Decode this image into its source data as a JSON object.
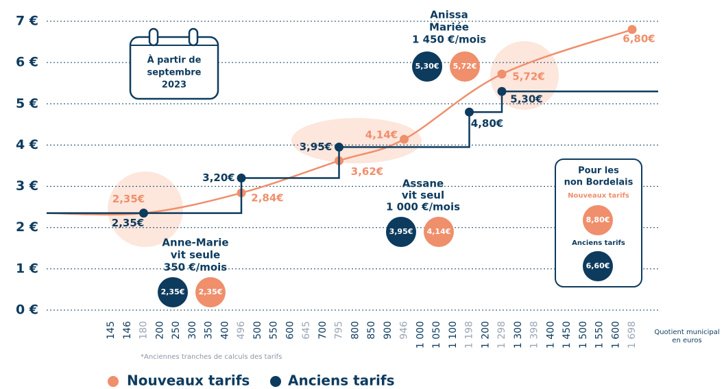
{
  "chart_data": {
    "type": "line",
    "categories": [
      "145",
      "146",
      "180",
      "200",
      "250",
      "300",
      "350",
      "400",
      "496",
      "500",
      "550",
      "600",
      "645",
      "700",
      "795",
      "800",
      "850",
      "900",
      "946",
      "1 000",
      "1 050",
      "1 100",
      "1 198",
      "1 200",
      "1 298",
      "1 300",
      "1 398",
      "1 400",
      "1 450",
      "1 500",
      "1 550",
      "1 600",
      "1 698"
    ],
    "category_colors": [
      "#0d3b5e",
      "#0d3b5e",
      "#9aa5b5",
      "#0d3b5e",
      "#0d3b5e",
      "#0d3b5e",
      "#0d3b5e",
      "#0d3b5e",
      "#9aa5b5",
      "#0d3b5e",
      "#0d3b5e",
      "#0d3b5e",
      "#9aa5b5",
      "#0d3b5e",
      "#9aa5b5",
      "#0d3b5e",
      "#0d3b5e",
      "#0d3b5e",
      "#9aa5b5",
      "#0d3b5e",
      "#0d3b5e",
      "#0d3b5e",
      "#9aa5b5",
      "#0d3b5e",
      "#9aa5b5",
      "#0d3b5e",
      "#9aa5b5",
      "#0d3b5e",
      "#0d3b5e",
      "#0d3b5e",
      "#0d3b5e",
      "#0d3b5e",
      "#9aa5b5"
    ],
    "ylim": [
      0,
      7
    ],
    "yticks": [
      {
        "value": 0,
        "label": "0 €"
      },
      {
        "value": 1,
        "label": "1 €"
      },
      {
        "value": 2,
        "label": "2 €"
      },
      {
        "value": 3,
        "label": "3 €"
      },
      {
        "value": 4,
        "label": "4 €"
      },
      {
        "value": 5,
        "label": "5 €"
      },
      {
        "value": 6,
        "label": "6 €"
      },
      {
        "value": 7,
        "label": "7 €"
      }
    ],
    "grid": true,
    "xlabel": [
      "Quotient municipal",
      "en euros"
    ],
    "footnote": "*Anciennes tranches de calculs des tarifs",
    "series": [
      {
        "name": "Nouveaux tarifs",
        "color": "#ef8f6c",
        "style": "smooth",
        "x": [
          "180",
          "496",
          "795",
          "946",
          "1 298",
          "1 698"
        ],
        "values": [
          2.35,
          2.84,
          3.62,
          4.14,
          5.72,
          6.8
        ],
        "value_labels": [
          "2,35€",
          "2,84€",
          "3,62€",
          "4,14€",
          "5,72€",
          "6,80€"
        ]
      },
      {
        "name": "Anciens tarifs",
        "color": "#0d3b5e",
        "style": "step",
        "x": [
          "180",
          "496",
          "795",
          "1 198",
          "1 298"
        ],
        "values": [
          2.35,
          3.2,
          3.95,
          4.8,
          5.3
        ],
        "value_labels": [
          "2,35€",
          "3,20€",
          "3,95€",
          "4,80€",
          "5,30€"
        ]
      }
    ],
    "annotations": {
      "calendar": [
        "À partir de",
        "septembre",
        "2023"
      ],
      "people": [
        {
          "lines": [
            "Anne-Marie",
            "vit seule",
            "350 €/mois"
          ],
          "old": "2,35€",
          "new": "2,35€"
        },
        {
          "lines": [
            "Assane",
            "vit seul",
            "1 000 €/mois"
          ],
          "old": "3,95€",
          "new": "4,14€"
        },
        {
          "lines": [
            "Anissa",
            "Mariée",
            "1 450 €/mois"
          ],
          "old": "5,30€",
          "new": "5,72€"
        }
      ],
      "non_bordelais": {
        "title": [
          "Pour les",
          "non Bordelais"
        ],
        "new_label": "Nouveaux tarifs",
        "new_value": "8,80€",
        "old_label": "Anciens tarifs",
        "old_value": "6,60€"
      }
    }
  }
}
